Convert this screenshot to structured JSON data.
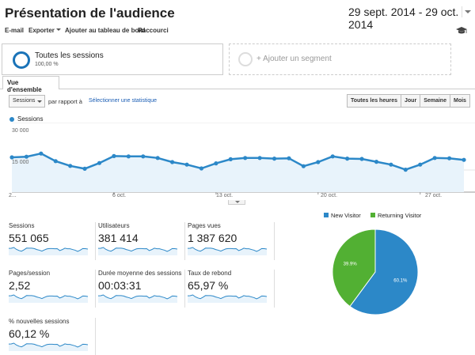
{
  "header": {
    "title": "Présentation de l'audience",
    "date_range": "29 sept. 2014 - 29 oct. 2014"
  },
  "toolbar": {
    "email": "E-mail",
    "export": "Exporter",
    "add_dashboard": "Ajouter au tableau de bord",
    "shortcut": "Raccourci"
  },
  "segments": {
    "active": {
      "name": "Toutes les sessions",
      "percent": "100,00 %"
    },
    "add_label": "+ Ajouter un segment"
  },
  "tabs": {
    "overview": "Vue d'ensemble"
  },
  "controls": {
    "metric_select": "Sessions",
    "compare_label": "par rapport à",
    "select_metric_link": "Sélectionner une statistique",
    "granularity": [
      "Toutes les heures",
      "Jour",
      "Semaine",
      "Mois"
    ],
    "granularity_active": "Jour"
  },
  "chart_data": [
    {
      "type": "area",
      "series": [
        {
          "name": "Sessions",
          "values": [
            19000,
            19200,
            20200,
            17800,
            16300,
            15400,
            17200,
            19400,
            19300,
            19300,
            18800,
            17500,
            16700,
            15500,
            17100,
            18400,
            18800,
            18800,
            18600,
            18700,
            16200,
            17500,
            19300,
            18600,
            18500,
            17600,
            16700,
            15100,
            16700,
            18800,
            18700,
            18200
          ]
        }
      ],
      "x_start": "2014-09-29",
      "ylim": [
        8000,
        30000
      ],
      "y_ticks": [
        "30 000",
        "15 000"
      ],
      "x_tick_labels": [
        "2...",
        "6 oct.",
        "13 oct.",
        "20 oct.",
        "27 oct."
      ],
      "color": "#2c88c8",
      "fill": "#e8f3fb"
    },
    {
      "type": "pie",
      "categories": [
        "New Visitor",
        "Returning Visitor"
      ],
      "values": [
        60.1,
        39.9
      ],
      "labels": [
        "60.1%",
        "39.9%"
      ],
      "colors": [
        "#2c88c8",
        "#52b033"
      ],
      "legend": "top"
    }
  ],
  "metrics": [
    {
      "label": "Sessions",
      "value": "551 065"
    },
    {
      "label": "Utilisateurs",
      "value": "381 414"
    },
    {
      "label": "Pages vues",
      "value": "1 387 620"
    },
    {
      "label": "Pages/session",
      "value": "2,52"
    },
    {
      "label": "Durée moyenne des sessions",
      "value": "00:03:31"
    },
    {
      "label": "Taux de rebond",
      "value": "65,97 %"
    },
    {
      "label": "% nouvelles sessions",
      "value": "60,12 %"
    }
  ],
  "icons": {
    "segment": "segment-ring-icon",
    "add_segment": "add-segment-ring-icon",
    "graduation_cap": "graduation-cap-icon",
    "dropdown": "chevron-down-icon"
  },
  "colors": {
    "accent": "#2c88c8",
    "link": "#1a5db4",
    "returning": "#52b033"
  }
}
